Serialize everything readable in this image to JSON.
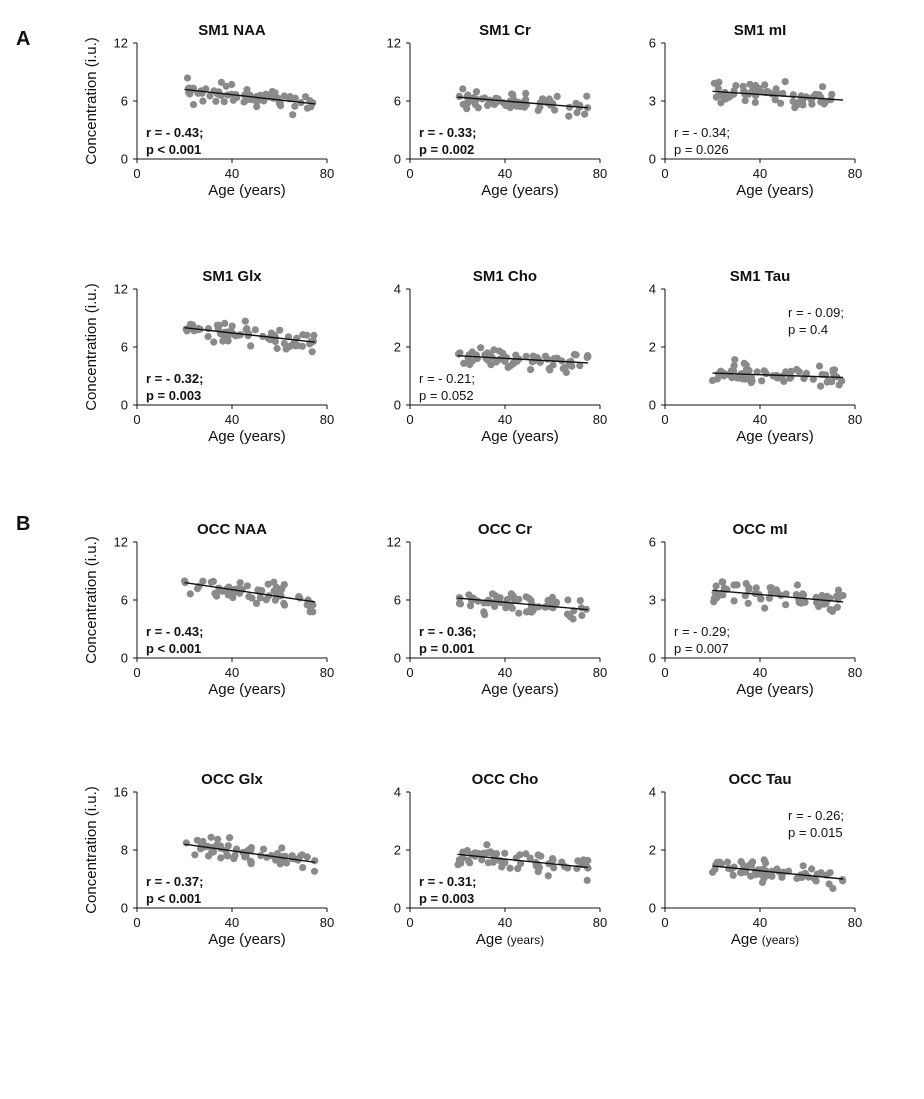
{
  "figure": {
    "section_labels": [
      "A",
      "B"
    ],
    "y_axis_label": "Concentration (i.u.)",
    "x_axis_label": "Age (years)",
    "x_axis_label_small_unit": {
      "main": "Age",
      "unit": "(years)"
    }
  },
  "chart_data": [
    {
      "id": "sm1-naa",
      "type": "scatter",
      "title": "SM1  NAA",
      "xlabel": "Age (years)",
      "ylabel": "Concentration (i.u.)",
      "xlim": [
        0,
        80
      ],
      "ylim": [
        0,
        12
      ],
      "xticks": [
        0,
        40,
        80
      ],
      "yticks": [
        0,
        6,
        12
      ],
      "fit": {
        "x": [
          20,
          75
        ],
        "y": [
          7.2,
          5.7
        ]
      },
      "stats": {
        "r": "r = - 0.43;",
        "p": "p < 0.001",
        "bold": true
      },
      "seed": 11
    },
    {
      "id": "sm1-cr",
      "type": "scatter",
      "title": "SM1 Cr",
      "xlabel": "Age (years)",
      "ylabel": "",
      "xlim": [
        0,
        80
      ],
      "ylim": [
        0,
        12
      ],
      "xticks": [
        0,
        40,
        80
      ],
      "yticks": [
        0,
        6,
        12
      ],
      "fit": {
        "x": [
          20,
          75
        ],
        "y": [
          6.4,
          5.3
        ]
      },
      "stats": {
        "r": "r = - 0.33;",
        "p": "p = 0.002",
        "bold": true
      },
      "seed": 23
    },
    {
      "id": "sm1-mi",
      "type": "scatter",
      "title": "SM1 mI",
      "xlabel": "Age (years)",
      "ylabel": "",
      "xlim": [
        0,
        80
      ],
      "ylim": [
        0,
        6
      ],
      "xticks": [
        0,
        40,
        80
      ],
      "yticks": [
        0,
        3,
        6
      ],
      "fit": {
        "x": [
          20,
          75
        ],
        "y": [
          3.5,
          3.05
        ]
      },
      "stats": {
        "r": "r = - 0.34;",
        "p": "p = 0.026",
        "bold": false
      },
      "seed": 37
    },
    {
      "id": "sm1-glx",
      "type": "scatter",
      "title": "SM1 Glx",
      "xlabel": "Age (years)",
      "ylabel": "Concentration (i.u.)",
      "xlim": [
        0,
        80
      ],
      "ylim": [
        0,
        12
      ],
      "xticks": [
        0,
        40,
        80
      ],
      "yticks": [
        0,
        6,
        12
      ],
      "fit": {
        "x": [
          20,
          75
        ],
        "y": [
          8.0,
          6.5
        ]
      },
      "stats": {
        "r": "r = - 0.32;",
        "p": "p = 0.003",
        "bold": true
      },
      "seed": 41
    },
    {
      "id": "sm1-cho",
      "type": "scatter",
      "title": "SM1 Cho",
      "xlabel": "Age (years)",
      "ylabel": "",
      "xlim": [
        0,
        80
      ],
      "ylim": [
        0,
        4
      ],
      "xticks": [
        0,
        40,
        80
      ],
      "yticks": [
        0,
        2,
        4
      ],
      "fit": {
        "x": [
          20,
          75
        ],
        "y": [
          1.7,
          1.45
        ]
      },
      "stats": {
        "r": "r = - 0.21;",
        "p": "p = 0.052",
        "bold": false
      },
      "seed": 53
    },
    {
      "id": "sm1-tau",
      "type": "scatter",
      "title": "SM1 Tau",
      "xlabel": "Age (years)",
      "ylabel": "",
      "xlim": [
        0,
        80
      ],
      "ylim": [
        0,
        4
      ],
      "xticks": [
        0,
        40,
        80
      ],
      "yticks": [
        0,
        2,
        4
      ],
      "fit": {
        "x": [
          20,
          75
        ],
        "y": [
          1.1,
          0.95
        ]
      },
      "stats": {
        "r": "r = - 0.09;",
        "p": "p = 0.4",
        "bold": false,
        "position": "top-right"
      },
      "seed": 67
    },
    {
      "id": "occ-naa",
      "type": "scatter",
      "title": "OCC NAA",
      "xlabel": "Age (years)",
      "ylabel": "Concentration (i.u.)",
      "xlim": [
        0,
        80
      ],
      "ylim": [
        0,
        12
      ],
      "xticks": [
        0,
        40,
        80
      ],
      "yticks": [
        0,
        6,
        12
      ],
      "fit": {
        "x": [
          20,
          75
        ],
        "y": [
          7.8,
          5.8
        ]
      },
      "stats": {
        "r": "r = - 0.43;",
        "p": "p < 0.001",
        "bold": true
      },
      "seed": 71
    },
    {
      "id": "occ-cr",
      "type": "scatter",
      "title": "OCC Cr",
      "xlabel": "Age (years)",
      "ylabel": "",
      "xlim": [
        0,
        80
      ],
      "ylim": [
        0,
        12
      ],
      "xticks": [
        0,
        40,
        80
      ],
      "yticks": [
        0,
        6,
        12
      ],
      "fit": {
        "x": [
          20,
          75
        ],
        "y": [
          6.2,
          5.0
        ]
      },
      "stats": {
        "r": "r = - 0.36;",
        "p": "p = 0.001",
        "bold": true
      },
      "seed": 83
    },
    {
      "id": "occ-mi",
      "type": "scatter",
      "title": "OCC mI",
      "xlabel": "Age (years)",
      "ylabel": "",
      "xlim": [
        0,
        80
      ],
      "ylim": [
        0,
        6
      ],
      "xticks": [
        0,
        40,
        80
      ],
      "yticks": [
        0,
        3,
        6
      ],
      "fit": {
        "x": [
          20,
          75
        ],
        "y": [
          3.5,
          2.9
        ]
      },
      "stats": {
        "r": "r = - 0.29;",
        "p": "p = 0.007",
        "bold": false
      },
      "seed": 97
    },
    {
      "id": "occ-glx",
      "type": "scatter",
      "title": "OCC Glx",
      "xlabel": "Age (years)",
      "ylabel": "Concentration (i.u.)",
      "xlim": [
        0,
        80
      ],
      "ylim": [
        0,
        16
      ],
      "xticks": [
        0,
        40,
        80
      ],
      "yticks": [
        0,
        8,
        16
      ],
      "fit": {
        "x": [
          20,
          75
        ],
        "y": [
          8.8,
          6.3
        ]
      },
      "stats": {
        "r": "r = - 0.37;",
        "p": "p < 0.001",
        "bold": true
      },
      "seed": 101
    },
    {
      "id": "occ-cho",
      "type": "scatter",
      "title": "OCC Cho",
      "xlabel": "Age (years)",
      "ylabel": "",
      "xlim": [
        0,
        80
      ],
      "ylim": [
        0,
        4
      ],
      "xticks": [
        0,
        40,
        80
      ],
      "yticks": [
        0,
        2,
        4
      ],
      "fit": {
        "x": [
          20,
          75
        ],
        "y": [
          1.85,
          1.4
        ]
      },
      "stats": {
        "r": "r = - 0.31;",
        "p": "p = 0.003",
        "bold": true
      },
      "seed": 113,
      "small_unit": true
    },
    {
      "id": "occ-tau",
      "type": "scatter",
      "title": "OCC Tau",
      "xlabel": "Age (years)",
      "ylabel": "",
      "xlim": [
        0,
        80
      ],
      "ylim": [
        0,
        4
      ],
      "xticks": [
        0,
        40,
        80
      ],
      "yticks": [
        0,
        2,
        4
      ],
      "fit": {
        "x": [
          20,
          75
        ],
        "y": [
          1.45,
          1.0
        ]
      },
      "stats": {
        "r": "r = - 0.26;",
        "p": "p = 0.015",
        "bold": false,
        "position": "top-right"
      },
      "seed": 127,
      "small_unit": true
    }
  ]
}
